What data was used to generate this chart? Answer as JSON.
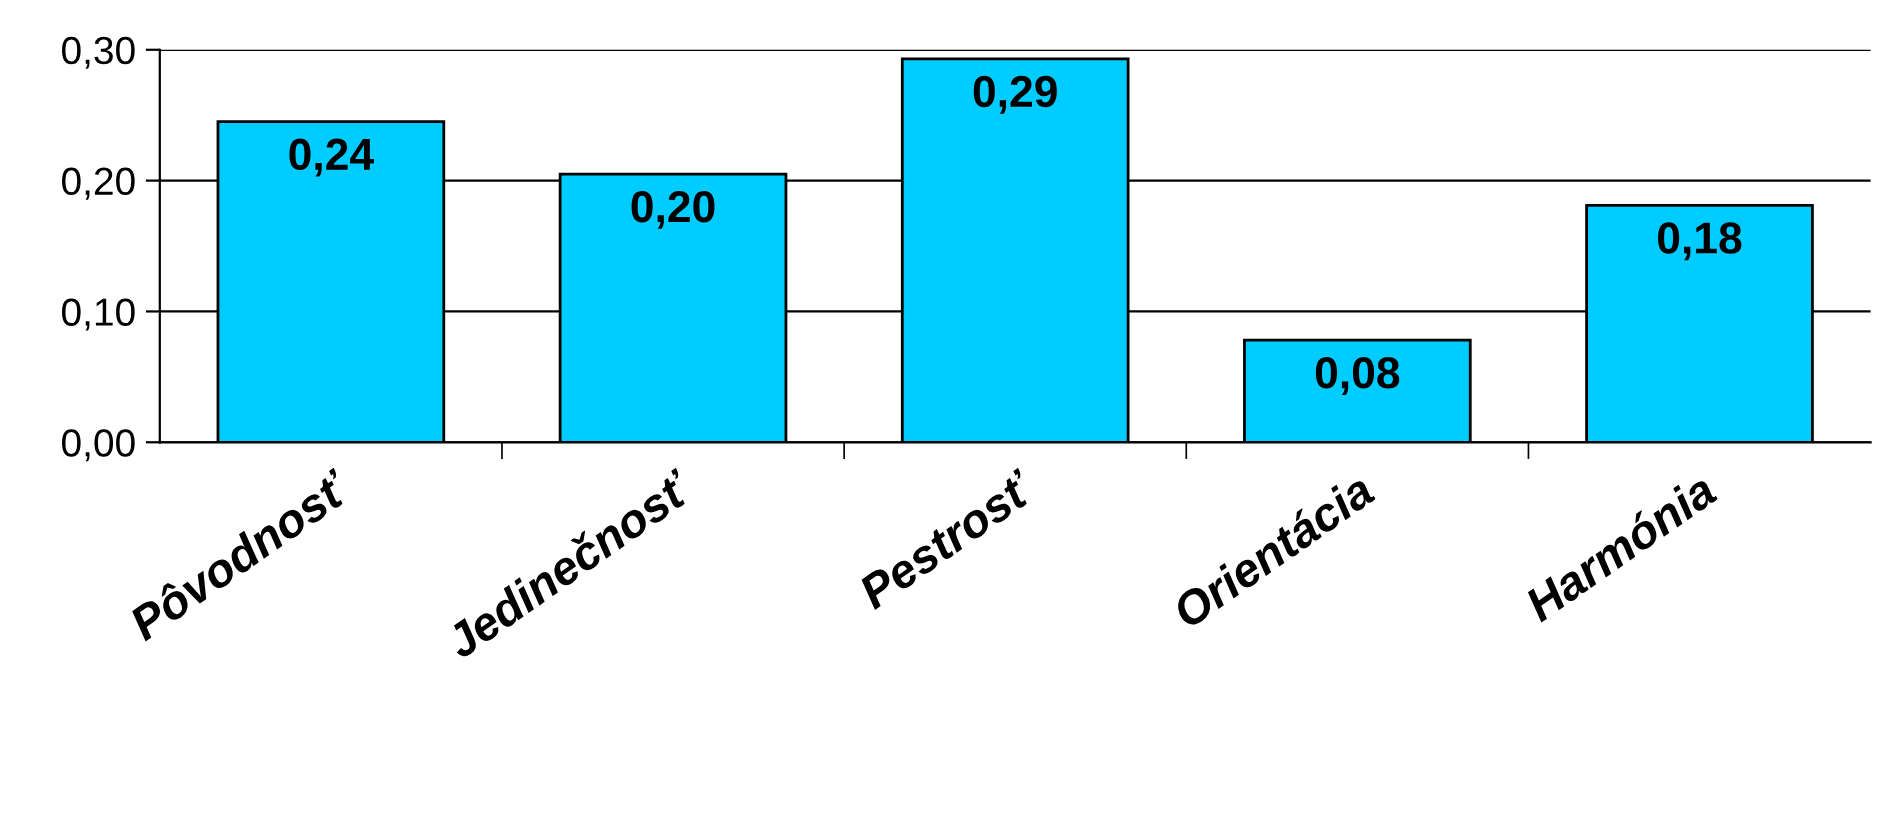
{
  "chart_data": {
    "type": "bar",
    "categories": [
      "Pôvodnosť",
      "Jedinečnosť",
      "Pestrosť",
      "Orientácia",
      "Harmónia"
    ],
    "values": [
      0.245,
      0.205,
      0.293,
      0.078,
      0.181
    ],
    "value_labels": [
      "0,24",
      "0,20",
      "0,29",
      "0,08",
      "0,18"
    ],
    "color": "#00ccff",
    "ylim": [
      0,
      0.3
    ],
    "yticks": [
      {
        "value": 0,
        "label": "0,00"
      },
      {
        "value": 0.1,
        "label": "0,10"
      },
      {
        "value": 0.2,
        "label": "0,20"
      },
      {
        "value": 0.3,
        "label": "0,30"
      }
    ],
    "grid": "y"
  }
}
